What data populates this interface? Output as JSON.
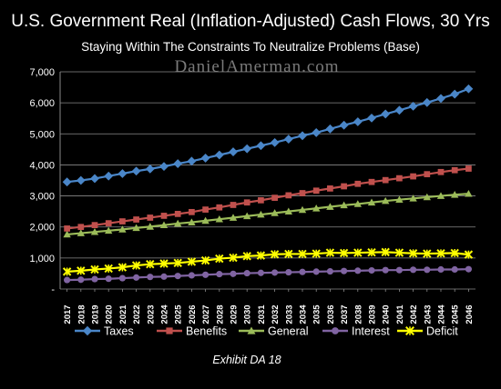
{
  "chart_data": {
    "type": "line",
    "title": "U.S. Government Real (Inflation-Adjusted) Cash Flows, 30 Yrs",
    "subtitle": "Staying Within The Constraints To Neutralize Problems (Base)",
    "watermark": "DanielAmerman.com",
    "caption": "Exhibit DA 18",
    "ylim": [
      0,
      7000
    ],
    "y_ticks": [
      "-",
      "1,000",
      "2,000",
      "3,000",
      "4,000",
      "5,000",
      "6,000",
      "7,000"
    ],
    "y_tick_values": [
      0,
      1000,
      2000,
      3000,
      4000,
      5000,
      6000,
      7000
    ],
    "grid": true,
    "legend_position": "bottom",
    "x": [
      "2017",
      "2018",
      "2019",
      "2020",
      "2021",
      "2022",
      "2023",
      "2024",
      "2025",
      "2026",
      "2027",
      "2028",
      "2029",
      "2030",
      "2031",
      "2032",
      "2033",
      "2034",
      "2035",
      "2036",
      "2037",
      "2038",
      "2039",
      "2040",
      "2041",
      "2042",
      "2043",
      "2044",
      "2045",
      "2046"
    ],
    "series": [
      {
        "name": "Taxes",
        "color": "#4a86c8",
        "marker": "diamond",
        "values": [
          3450,
          3500,
          3560,
          3640,
          3720,
          3800,
          3870,
          3950,
          4040,
          4120,
          4220,
          4320,
          4420,
          4520,
          4620,
          4720,
          4830,
          4940,
          5040,
          5160,
          5280,
          5390,
          5510,
          5640,
          5760,
          5890,
          6010,
          6140,
          6280,
          6450
        ]
      },
      {
        "name": "Benefits",
        "color": "#c0504d",
        "marker": "square",
        "values": [
          1950,
          2000,
          2060,
          2120,
          2180,
          2240,
          2300,
          2360,
          2420,
          2480,
          2560,
          2630,
          2710,
          2790,
          2860,
          2940,
          3020,
          3090,
          3170,
          3240,
          3310,
          3390,
          3450,
          3510,
          3570,
          3630,
          3700,
          3770,
          3830,
          3880
        ]
      },
      {
        "name": "General",
        "color": "#9bbb59",
        "marker": "triangle",
        "values": [
          1760,
          1800,
          1840,
          1880,
          1920,
          1970,
          2010,
          2060,
          2110,
          2150,
          2200,
          2250,
          2300,
          2350,
          2400,
          2450,
          2500,
          2550,
          2600,
          2650,
          2700,
          2740,
          2790,
          2840,
          2880,
          2920,
          2960,
          3000,
          3040,
          3070
        ]
      },
      {
        "name": "Interest",
        "color": "#8064a2",
        "marker": "circle",
        "values": [
          290,
          300,
          320,
          330,
          350,
          370,
          390,
          400,
          420,
          440,
          460,
          480,
          490,
          510,
          520,
          530,
          540,
          550,
          560,
          570,
          580,
          590,
          600,
          610,
          610,
          620,
          620,
          630,
          630,
          640
        ]
      },
      {
        "name": "Deficit",
        "color": "#ffff00",
        "marker": "star",
        "values": [
          560,
          590,
          630,
          660,
          700,
          760,
          800,
          820,
          840,
          880,
          920,
          980,
          1010,
          1060,
          1080,
          1120,
          1130,
          1130,
          1140,
          1170,
          1160,
          1170,
          1180,
          1190,
          1170,
          1150,
          1140,
          1150,
          1160,
          1110
        ]
      }
    ]
  }
}
